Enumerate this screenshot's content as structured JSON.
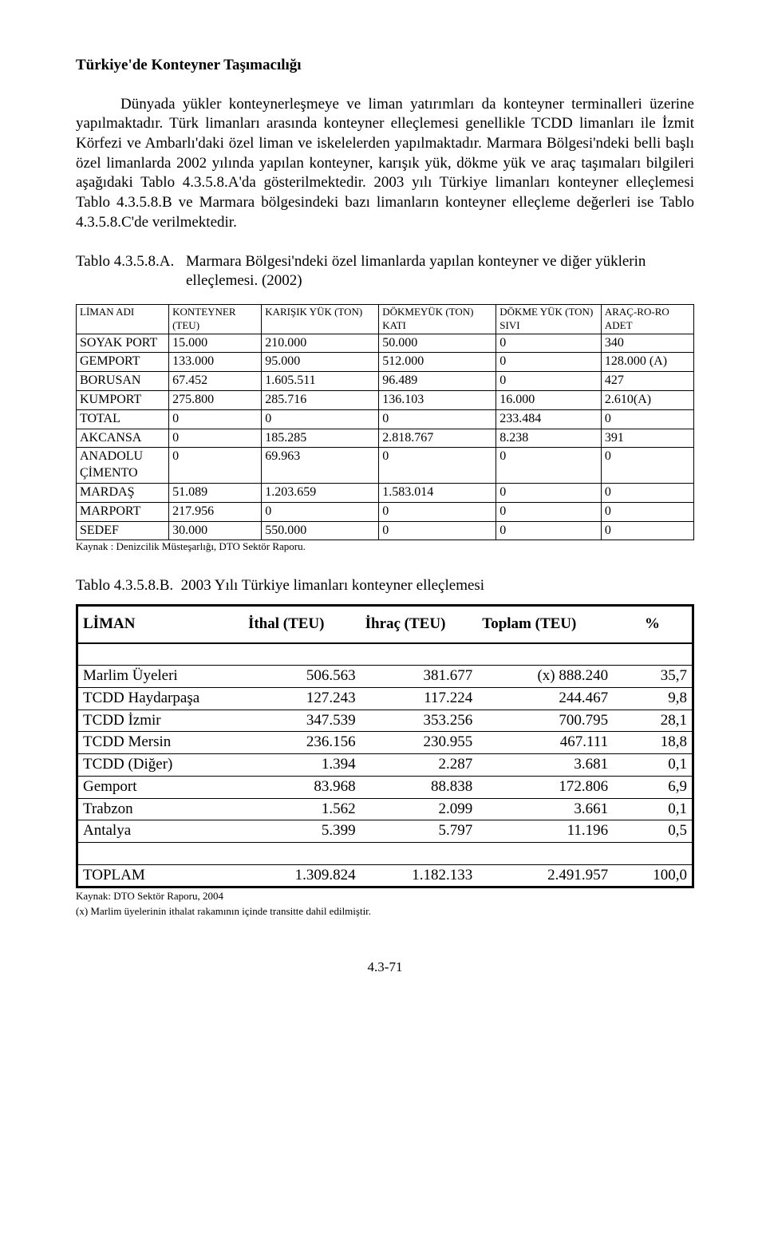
{
  "title": "Türkiye'de Konteyner Taşımacılığı",
  "para1": "Dünyada yükler konteynerleşmeye ve liman yatırımları da konteyner terminalleri üzerine yapılmaktadır. Türk limanları arasında konteyner elleçlemesi genellikle TCDD limanları ile İzmit Körfezi ve Ambarlı'daki özel liman ve iskelelerden yapılmaktadır. Marmara Bölgesi'ndeki belli başlı özel limanlarda 2002 yılında yapılan konteyner, karışık yük, dökme yük ve araç taşımaları  bilgileri  aşağıdaki Tablo 4.3.5.8.A'da  gösterilmektedir. 2003 yılı Türkiye limanları konteyner elleçlemesi Tablo 4.3.5.8.B ve Marmara bölgesindeki bazı limanların konteyner elleçleme değerleri ise Tablo 4.3.5.8.C'de verilmektedir.",
  "tableA": {
    "label": "Tablo 4.3.5.8.A.",
    "title": "Marmara Bölgesi'ndeki özel limanlarda yapılan konteyner ve diğer yüklerin elleçlemesi. (2002)",
    "headers": [
      "LİMAN ADI",
      "KONTEYNER (TEU)",
      "KARIŞIK YÜK (TON)",
      "DÖKMEYÜK (TON) KATI",
      "DÖKME YÜK (TON) SIVI",
      "ARAÇ-RO-RO ADET"
    ],
    "rows": [
      [
        "SOYAK PORT",
        "15.000",
        "210.000",
        "50.000",
        "0",
        "340"
      ],
      [
        "GEMPORT",
        "133.000",
        "95.000",
        "512.000",
        "0",
        "128.000 (A)"
      ],
      [
        "BORUSAN",
        "67.452",
        "1.605.511",
        "96.489",
        "0",
        "427"
      ],
      [
        "KUMPORT",
        "275.800",
        "285.716",
        "136.103",
        "16.000",
        "2.610(A)"
      ],
      [
        "TOTAL",
        "0",
        "0",
        "0",
        "233.484",
        "0"
      ],
      [
        "AKCANSA",
        "0",
        "185.285",
        "2.818.767",
        "8.238",
        "391"
      ],
      [
        "ANADOLU ÇİMENTO",
        "0",
        "69.963",
        "0",
        "0",
        "0"
      ],
      [
        "MARDAŞ",
        "51.089",
        "1.203.659",
        "1.583.014",
        "0",
        "0"
      ],
      [
        "MARPORT",
        "217.956",
        "0",
        "0",
        "0",
        "0"
      ],
      [
        "SEDEF",
        "30.000",
        "550.000",
        "0",
        "0",
        "0"
      ]
    ],
    "source": "Kaynak : Denizcilik Müsteşarlığı, DTO Sektör Raporu."
  },
  "tableB": {
    "label": "Tablo 4.3.5.8.B.",
    "title": "2003 Yılı Türkiye limanları konteyner elleçlemesi",
    "headers": [
      "LİMAN",
      "İthal (TEU)",
      "İhraç (TEU)",
      "Toplam (TEU)",
      "%"
    ],
    "rows": [
      [
        "Marlim Üyeleri",
        "506.563",
        "381.677",
        "(x) 888.240",
        "35,7"
      ],
      [
        "TCDD Haydarpaşa",
        "127.243",
        "117.224",
        "244.467",
        "9,8"
      ],
      [
        "TCDD İzmir",
        "347.539",
        "353.256",
        "700.795",
        "28,1"
      ],
      [
        "TCDD Mersin",
        "236.156",
        "230.955",
        "467.111",
        "18,8"
      ],
      [
        "TCDD (Diğer)",
        "1.394",
        "2.287",
        "3.681",
        "0,1"
      ],
      [
        "Gemport",
        "83.968",
        "88.838",
        "172.806",
        "6,9"
      ],
      [
        "Trabzon",
        "1.562",
        "2.099",
        "3.661",
        "0,1"
      ],
      [
        "Antalya",
        "5.399",
        "5.797",
        "11.196",
        "0,5"
      ]
    ],
    "total": [
      "TOPLAM",
      "1.309.824",
      "1.182.133",
      "2.491.957",
      "100,0"
    ],
    "source": "Kaynak: DTO Sektör Raporu, 2004",
    "footnote": "(x) Marlim üyelerinin ithalat rakamının içinde transitte dahil edilmiştir."
  },
  "pagenum": "4.3-71"
}
